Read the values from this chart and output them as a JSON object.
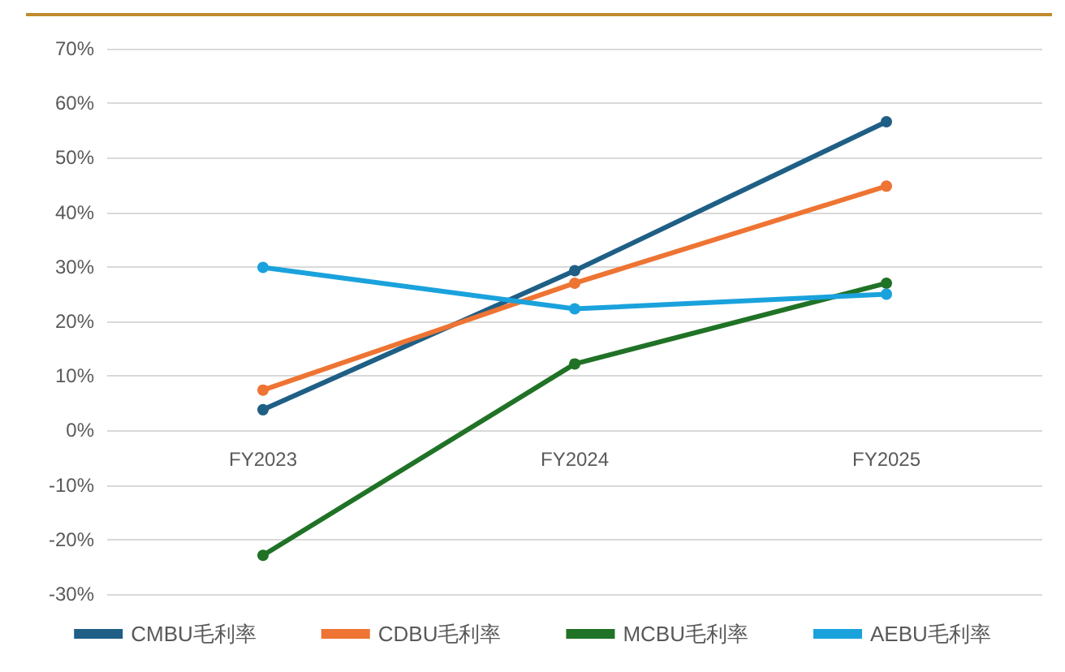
{
  "chart_data": {
    "type": "line",
    "categories": [
      "FY2023",
      "FY2024",
      "FY2025"
    ],
    "series": [
      {
        "name": "CMBU毛利率",
        "color": "#1f5f86",
        "values": [
          3.8,
          29.3,
          56.6
        ]
      },
      {
        "name": "CDBU毛利率",
        "color": "#ee7433",
        "values": [
          7.4,
          27.0,
          44.8
        ]
      },
      {
        "name": "MCBU毛利率",
        "color": "#207226",
        "values": [
          -22.9,
          12.2,
          27.0
        ]
      },
      {
        "name": "AEBU毛利率",
        "color": "#1aa2dc",
        "values": [
          29.9,
          22.3,
          25.0
        ]
      }
    ],
    "ylim": [
      -30,
      70
    ],
    "yticks": [
      {
        "value": -30,
        "label": "-30%"
      },
      {
        "value": -20,
        "label": "-20%"
      },
      {
        "value": -10,
        "label": "-10%"
      },
      {
        "value": 0,
        "label": "0%"
      },
      {
        "value": 10,
        "label": "10%"
      },
      {
        "value": 20,
        "label": "20%"
      },
      {
        "value": 30,
        "label": "30%"
      },
      {
        "value": 40,
        "label": "40%"
      },
      {
        "value": 50,
        "label": "50%"
      },
      {
        "value": 60,
        "label": "60%"
      },
      {
        "value": 70,
        "label": "70%"
      }
    ],
    "grid": "y",
    "legend": "bottom",
    "marker": "circle",
    "line_style": "solid"
  }
}
